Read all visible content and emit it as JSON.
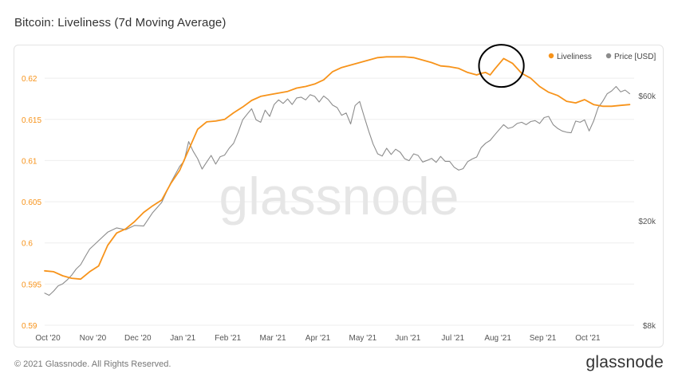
{
  "page": {
    "title": "Bitcoin: Liveliness (7d Moving Average)",
    "copyright": "© 2021 Glassnode. All Rights Reserved.",
    "brand": "glassnode",
    "watermark": "glassnode"
  },
  "colors": {
    "liveliness": "#f7931a",
    "price": "#8c8c8c",
    "grid": "#eeeeee",
    "left_axis_text": "#f7931a",
    "right_axis_text": "#555555",
    "watermark": "#e6e6e6",
    "annotation": "#000000"
  },
  "chart_data": {
    "type": "line",
    "x_tick_labels": [
      "Oct '20",
      "Nov '20",
      "Dec '20",
      "Jan '21",
      "Feb '21",
      "Mar '21",
      "Apr '21",
      "May '21",
      "Jun '21",
      "Jul '21",
      "Aug '21",
      "Sep '21",
      "Oct '21"
    ],
    "x_tick_index": [
      0,
      1,
      2,
      3,
      4,
      5,
      6,
      7,
      8,
      9,
      10,
      11,
      12
    ],
    "x_range": [
      0,
      13.1
    ],
    "left_axis": {
      "name": "Liveliness",
      "ticks": [
        "0.59",
        "0.595",
        "0.6",
        "0.605",
        "0.61",
        "0.615",
        "0.62"
      ],
      "range": [
        0.59,
        0.6235
      ]
    },
    "right_axis": {
      "name": "Price [USD]",
      "scale": "log",
      "ticks": [
        "$8k",
        "$20k",
        "$60k"
      ],
      "tick_values": [
        8000,
        20000,
        60000
      ],
      "range": [
        8000,
        90000
      ]
    },
    "legend": {
      "position": "top-right",
      "items": [
        "Liveliness",
        "Price [USD]"
      ]
    },
    "grid": true,
    "series": [
      {
        "name": "Liveliness",
        "axis": "left",
        "x": [
          0.0,
          0.2,
          0.4,
          0.6,
          0.8,
          1.0,
          1.2,
          1.4,
          1.6,
          1.8,
          2.0,
          2.2,
          2.4,
          2.6,
          2.8,
          3.0,
          3.2,
          3.4,
          3.6,
          3.8,
          4.0,
          4.2,
          4.4,
          4.6,
          4.8,
          5.0,
          5.2,
          5.4,
          5.6,
          5.8,
          6.0,
          6.2,
          6.4,
          6.6,
          6.8,
          7.0,
          7.2,
          7.4,
          7.6,
          7.8,
          8.0,
          8.2,
          8.4,
          8.6,
          8.8,
          9.0,
          9.2,
          9.4,
          9.6,
          9.7,
          9.8,
          9.9,
          10.0,
          10.2,
          10.4,
          10.6,
          10.8,
          11.0,
          11.2,
          11.4,
          11.6,
          11.8,
          12.0,
          12.2,
          12.4,
          12.6,
          12.8,
          13.0
        ],
        "y": [
          0.5966,
          0.5965,
          0.596,
          0.5957,
          0.5956,
          0.5965,
          0.5972,
          0.5997,
          0.6012,
          0.6017,
          0.6026,
          0.6037,
          0.6045,
          0.6052,
          0.6072,
          0.6088,
          0.6113,
          0.6138,
          0.6147,
          0.6148,
          0.615,
          0.6158,
          0.6165,
          0.6173,
          0.6178,
          0.618,
          0.6182,
          0.6184,
          0.6188,
          0.619,
          0.6193,
          0.6198,
          0.6208,
          0.6213,
          0.6216,
          0.6219,
          0.6222,
          0.6225,
          0.6226,
          0.6226,
          0.6226,
          0.6225,
          0.6222,
          0.6219,
          0.6215,
          0.6214,
          0.6212,
          0.6207,
          0.6204,
          0.6206,
          0.6207,
          0.6204,
          0.6211,
          0.6224,
          0.6218,
          0.6206,
          0.62,
          0.619,
          0.6183,
          0.6179,
          0.6172,
          0.617,
          0.6174,
          0.6168,
          0.6166,
          0.6166,
          0.6167,
          0.6168
        ]
      },
      {
        "name": "Price [USD]",
        "axis": "right",
        "x": [
          0.0,
          0.1,
          0.2,
          0.3,
          0.4,
          0.5,
          0.6,
          0.7,
          0.8,
          0.9,
          1.0,
          1.2,
          1.4,
          1.6,
          1.8,
          2.0,
          2.2,
          2.4,
          2.6,
          2.8,
          3.0,
          3.1,
          3.2,
          3.3,
          3.4,
          3.5,
          3.6,
          3.7,
          3.8,
          3.9,
          4.0,
          4.1,
          4.2,
          4.3,
          4.4,
          4.5,
          4.6,
          4.7,
          4.8,
          4.9,
          5.0,
          5.1,
          5.2,
          5.3,
          5.4,
          5.5,
          5.6,
          5.7,
          5.8,
          5.9,
          6.0,
          6.1,
          6.2,
          6.3,
          6.4,
          6.5,
          6.6,
          6.7,
          6.8,
          6.9,
          7.0,
          7.1,
          7.2,
          7.3,
          7.4,
          7.5,
          7.6,
          7.7,
          7.8,
          7.9,
          8.0,
          8.1,
          8.2,
          8.3,
          8.4,
          8.5,
          8.6,
          8.7,
          8.8,
          8.9,
          9.0,
          9.1,
          9.2,
          9.3,
          9.4,
          9.5,
          9.6,
          9.7,
          9.8,
          9.9,
          10.0,
          10.1,
          10.2,
          10.3,
          10.4,
          10.5,
          10.6,
          10.7,
          10.8,
          10.9,
          11.0,
          11.1,
          11.2,
          11.3,
          11.4,
          11.5,
          11.6,
          11.7,
          11.8,
          11.9,
          12.0,
          12.1,
          12.2,
          12.3,
          12.4,
          12.5,
          12.6,
          12.7,
          12.8,
          12.9,
          13.0
        ],
        "y": [
          10600,
          10400,
          10800,
          11300,
          11500,
          11900,
          12400,
          13100,
          13600,
          14600,
          15600,
          16800,
          18100,
          18800,
          18500,
          19200,
          19100,
          21500,
          23500,
          27900,
          32200,
          33800,
          40100,
          36800,
          34500,
          31500,
          33500,
          35500,
          32900,
          35100,
          35600,
          37800,
          39500,
          43500,
          48500,
          51000,
          53500,
          48500,
          47500,
          52800,
          50000,
          55500,
          57800,
          56000,
          58300,
          55500,
          58800,
          59200,
          57800,
          60500,
          59600,
          56700,
          59800,
          58000,
          55200,
          54000,
          50500,
          51500,
          46800,
          55000,
          57000,
          50000,
          44000,
          39200,
          36000,
          35300,
          37800,
          35800,
          37500,
          36500,
          34500,
          33900,
          36000,
          35500,
          33500,
          34000,
          34600,
          33400,
          35200,
          33700,
          33700,
          32000,
          31200,
          31600,
          33600,
          34400,
          35000,
          38000,
          39500,
          40500,
          42500,
          44500,
          46500,
          45000,
          45500,
          47000,
          47500,
          46500,
          47800,
          48200,
          47000,
          49500,
          50000,
          46500,
          45000,
          44000,
          43500,
          43300,
          48000,
          47500,
          48500,
          44000,
          48000,
          54000,
          57000,
          61000,
          62500,
          65000,
          62000,
          63000,
          61000
        ]
      }
    ],
    "annotations": [
      {
        "type": "ellipse",
        "around_x": [
          9.9,
          10.4
        ],
        "around_y_range": [
          0.6199,
          0.6231
        ]
      }
    ]
  }
}
